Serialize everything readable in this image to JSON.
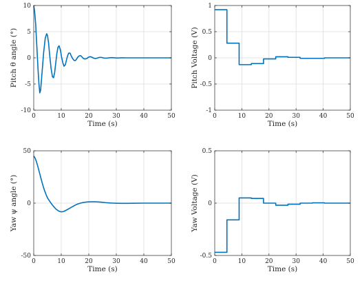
{
  "colors": {
    "series": "#0072BD",
    "grid": "#dcdcdc",
    "axis": "#262626"
  },
  "chart_data": [
    {
      "id": "pitch-angle",
      "type": "line",
      "xlabel": "Time (s)",
      "ylabel": "Pitch θ angle (°)",
      "xlim": [
        0,
        50
      ],
      "ylim": [
        -10,
        10
      ],
      "xticks": [
        0,
        10,
        20,
        30,
        40,
        50
      ],
      "yticks": [
        -10,
        -5,
        0,
        5,
        10
      ],
      "grid": true,
      "step": false,
      "series": [
        {
          "x": [
            0,
            0.3,
            0.7,
            1.0,
            1.3,
            1.6,
            1.9,
            2.2,
            2.5,
            3.0,
            3.6,
            4.2,
            4.7,
            5.0,
            5.4,
            5.8,
            6.3,
            6.8,
            7.2,
            7.6,
            8.0,
            8.4,
            8.8,
            9.2,
            9.7,
            10.1,
            10.6,
            11.0,
            11.5,
            11.9,
            12.3,
            12.7,
            13.2,
            13.6,
            14.2,
            14.7,
            15.2,
            15.6,
            16.1,
            16.6,
            17.1,
            17.5,
            18.0,
            18.4,
            18.9,
            19.4,
            19.8,
            20.3,
            20.8,
            21.2,
            21.7,
            22.2,
            22.6,
            23.1,
            23.6,
            24.1,
            24.6,
            25.1,
            25.6,
            26.2,
            26.7,
            27.2,
            27.7,
            28.4,
            29.0,
            29.7,
            30.4,
            31.1,
            31.8,
            32.6,
            33.5,
            34.5,
            36.0,
            38.0,
            41.0,
            45.0,
            50.0
          ],
          "y": [
            10.0,
            9.0,
            6.5,
            3.5,
            0.5,
            -2.5,
            -5.0,
            -6.7,
            -6.2,
            -3.0,
            1.0,
            3.8,
            4.6,
            4.3,
            2.8,
            0.5,
            -2.0,
            -3.6,
            -3.8,
            -2.8,
            -1.0,
            0.8,
            2.0,
            2.3,
            1.5,
            0.2,
            -1.0,
            -1.6,
            -1.3,
            -0.4,
            0.4,
            0.9,
            0.9,
            0.4,
            -0.2,
            -0.5,
            -0.5,
            -0.2,
            0.2,
            0.4,
            0.4,
            0.2,
            -0.1,
            -0.2,
            -0.2,
            -0.1,
            0.1,
            0.2,
            0.2,
            0.1,
            -0.05,
            -0.12,
            -0.12,
            -0.05,
            0.05,
            0.1,
            0.08,
            0.02,
            -0.04,
            -0.06,
            -0.04,
            0.0,
            0.03,
            0.04,
            0.02,
            -0.01,
            -0.02,
            -0.01,
            0.01,
            0.01,
            0.0,
            0.0,
            0.0,
            0.0,
            0.0,
            0.0,
            0.0
          ]
        }
      ]
    },
    {
      "id": "pitch-voltage",
      "type": "line",
      "xlabel": "Time (s)",
      "ylabel": "Pitch Voltage (V)",
      "xlim": [
        0,
        50
      ],
      "ylim": [
        -1,
        1
      ],
      "xticks": [
        0,
        10,
        20,
        30,
        40,
        50
      ],
      "yticks": [
        -1,
        -0.5,
        0,
        0.5,
        1
      ],
      "grid": true,
      "step": true,
      "series": [
        {
          "x": [
            0,
            4.5,
            9,
            13.5,
            18,
            22.5,
            27,
            31.5,
            36,
            40.5,
            45,
            50
          ],
          "y": [
            0.92,
            0.28,
            -0.13,
            -0.11,
            -0.02,
            0.02,
            0.01,
            -0.01,
            -0.01,
            0.0,
            0.0,
            0.0
          ]
        }
      ]
    },
    {
      "id": "yaw-angle",
      "type": "line",
      "xlabel": "Time (s)",
      "ylabel": "Yaw ψ angle (°)",
      "xlim": [
        0,
        50
      ],
      "ylim": [
        -50,
        50
      ],
      "xticks": [
        0,
        10,
        20,
        30,
        40,
        50
      ],
      "yticks": [
        -50,
        0,
        50
      ],
      "grid": true,
      "step": false,
      "series": [
        {
          "x": [
            0,
            0.5,
            1.0,
            1.5,
            2.0,
            2.5,
            3.0,
            3.5,
            4.0,
            4.5,
            5.0,
            5.5,
            6.0,
            6.5,
            7.0,
            7.5,
            8.0,
            8.5,
            9.0,
            9.5,
            10.0,
            10.5,
            11.0,
            12.0,
            13.0,
            14.0,
            15.0,
            16.0,
            17.0,
            18.0,
            19.0,
            20.0,
            21.0,
            22.0,
            23.0,
            24.0,
            25.0,
            26.0,
            27.0,
            28.0,
            29.0,
            30.0,
            32.0,
            34.0,
            36.0,
            40.0,
            45.0,
            50.0
          ],
          "y": [
            45.0,
            43.0,
            39.5,
            35.0,
            30.0,
            25.0,
            20.0,
            15.5,
            11.5,
            8.0,
            5.0,
            3.0,
            1.0,
            -0.8,
            -2.5,
            -4.0,
            -5.5,
            -6.5,
            -7.5,
            -8.0,
            -8.3,
            -8.2,
            -7.8,
            -6.5,
            -5.0,
            -3.5,
            -2.0,
            -0.8,
            0.0,
            0.6,
            1.0,
            1.2,
            1.3,
            1.3,
            1.2,
            1.0,
            0.8,
            0.5,
            0.3,
            0.1,
            0.0,
            -0.1,
            -0.2,
            -0.2,
            -0.1,
            0.0,
            0.0,
            0.0
          ]
        }
      ]
    },
    {
      "id": "yaw-voltage",
      "type": "line",
      "xlabel": "Time (s)",
      "ylabel": "Yaw Voltage (V)",
      "xlim": [
        0,
        50
      ],
      "ylim": [
        -0.5,
        0.5
      ],
      "xticks": [
        0,
        10,
        20,
        30,
        40,
        50
      ],
      "yticks": [
        -0.5,
        0,
        0.5
      ],
      "grid": true,
      "step": true,
      "series": [
        {
          "x": [
            0,
            4.5,
            9,
            13.5,
            18,
            22.5,
            27,
            31.5,
            36,
            40.5,
            45,
            50
          ],
          "y": [
            -0.47,
            -0.16,
            0.05,
            0.045,
            0.0,
            -0.02,
            -0.01,
            0.0,
            0.003,
            0.0,
            0.0,
            0.0
          ]
        }
      ]
    }
  ]
}
